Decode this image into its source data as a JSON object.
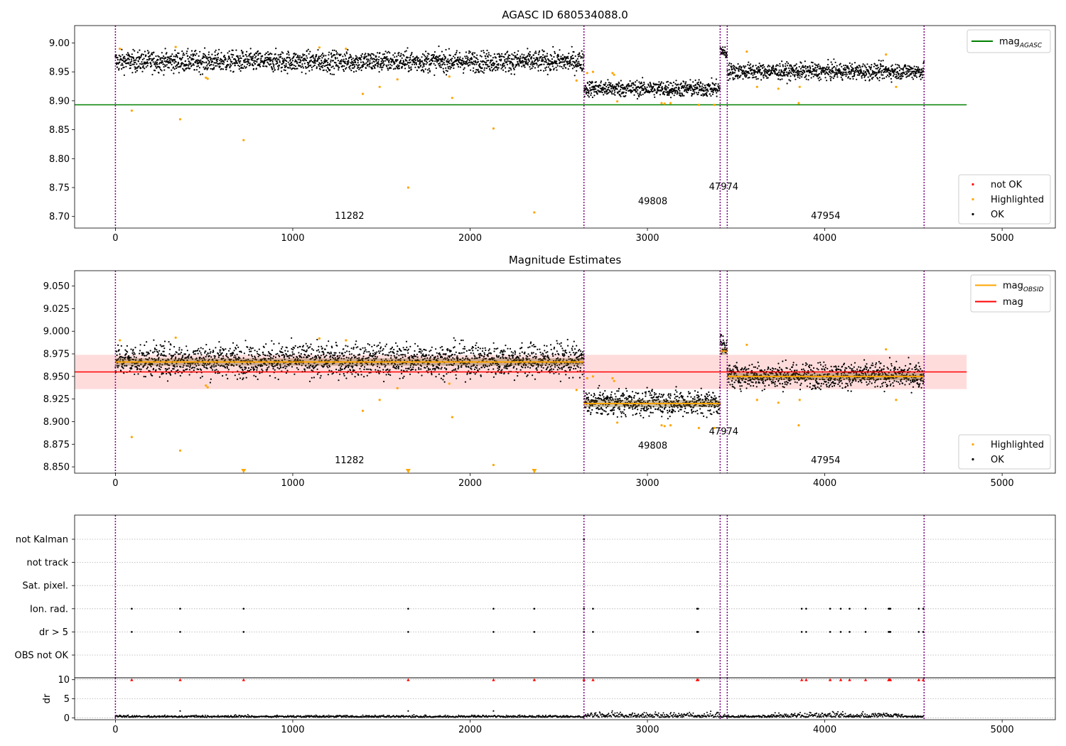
{
  "chart_data": [
    {
      "type": "scatter",
      "title": "AGASC ID 680534088.0",
      "xlim": [
        -230,
        5300
      ],
      "ylim": [
        8.68,
        9.03
      ],
      "x_ticks": [
        0,
        1000,
        2000,
        3000,
        4000,
        5000
      ],
      "y_ticks": [
        8.7,
        8.75,
        8.8,
        8.85,
        8.9,
        8.95,
        9.0
      ],
      "observation_boundaries": [
        0,
        2642,
        3410,
        3450,
        4560
      ],
      "segments": [
        {
          "x_start": 0,
          "x_end": 2642,
          "mean": 8.968,
          "noise": 0.009
        },
        {
          "x_start": 2642,
          "x_end": 3410,
          "mean": 8.921,
          "noise": 0.007
        },
        {
          "x_start": 3410,
          "x_end": 3450,
          "mean": 8.98,
          "noise": 0.008
        },
        {
          "x_start": 3450,
          "x_end": 4560,
          "mean": 8.951,
          "noise": 0.007
        }
      ],
      "obsid_labels": [
        {
          "text": "11282",
          "x": 1320,
          "y": 8.69
        },
        {
          "text": "49808",
          "x": 3030,
          "y": 8.715
        },
        {
          "text": "47974",
          "x": 3430,
          "y": 8.74
        },
        {
          "text": "47954",
          "x": 4005,
          "y": 8.69
        }
      ],
      "series": [
        {
          "name": "mag_AGASC",
          "type": "hline",
          "y": 8.893,
          "x_start": -230,
          "x_end": 4800,
          "color": "#008000"
        },
        {
          "name": "Highlighted",
          "color": "#ffa500",
          "points": [
            [
              25,
              8.99
            ],
            [
              92,
              8.883
            ],
            [
              340,
              8.993
            ],
            [
              365,
              8.868
            ],
            [
              510,
              8.94
            ],
            [
              520,
              8.938
            ],
            [
              723,
              8.832
            ],
            [
              1150,
              8.992
            ],
            [
              1300,
              8.99
            ],
            [
              1395,
              8.912
            ],
            [
              1490,
              8.924
            ],
            [
              1590,
              8.937
            ],
            [
              1651,
              8.75
            ],
            [
              1883,
              8.942
            ],
            [
              1899,
              8.905
            ],
            [
              2132,
              8.852
            ],
            [
              2362,
              8.707
            ],
            [
              2600,
              8.935
            ],
            [
              2660,
              8.948
            ],
            [
              2693,
              8.95
            ],
            [
              2803,
              8.948
            ],
            [
              2812,
              8.945
            ],
            [
              2830,
              8.899
            ],
            [
              3080,
              8.896
            ],
            [
              3097,
              8.895
            ],
            [
              3130,
              8.896
            ],
            [
              3290,
              8.893
            ],
            [
              3377,
              8.893
            ],
            [
              3560,
              8.985
            ],
            [
              3618,
              8.924
            ],
            [
              3738,
              8.921
            ],
            [
              3853,
              8.896
            ],
            [
              3858,
              8.924
            ],
            [
              4345,
              8.98
            ],
            [
              4402,
              8.924
            ]
          ]
        },
        {
          "name": "not OK",
          "color": "#ff0000",
          "points": []
        },
        {
          "name": "OK",
          "color": "#000000",
          "description": "dense per-frame magnitudes around the segment means"
        }
      ],
      "legends": [
        {
          "position": "top-right",
          "items": [
            {
              "label": "mag",
              "sub": "AGASC",
              "kind": "line",
              "color": "#008000"
            }
          ]
        },
        {
          "position": "bottom-right",
          "items": [
            {
              "label": "not OK",
              "kind": "dot",
              "color": "#ff0000"
            },
            {
              "label": "Highlighted",
              "kind": "dot",
              "color": "#ffa500"
            },
            {
              "label": "OK",
              "kind": "dot",
              "color": "#000000"
            }
          ]
        }
      ]
    },
    {
      "type": "scatter",
      "title": "Magnitude Estimates",
      "xlim": [
        -230,
        5300
      ],
      "ylim": [
        8.843,
        9.067
      ],
      "x_ticks": [
        0,
        1000,
        2000,
        3000,
        4000,
        5000
      ],
      "y_ticks": [
        8.85,
        8.875,
        8.9,
        8.925,
        8.95,
        8.975,
        9.0,
        9.025,
        9.05
      ],
      "observation_boundaries": [
        0,
        2642,
        3410,
        3450,
        4560
      ],
      "mag": {
        "y": 8.955,
        "band": [
          8.936,
          8.974
        ],
        "x_start": -230,
        "x_end": 4800,
        "color": "#ff0000",
        "band_color": "#ffdcdc"
      },
      "mag_obsid": [
        {
          "x_start": 0,
          "x_end": 2642,
          "y": 8.966
        },
        {
          "x_start": 2642,
          "x_end": 3410,
          "y": 8.92
        },
        {
          "x_start": 3410,
          "x_end": 3450,
          "y": 8.978
        },
        {
          "x_start": 3450,
          "x_end": 4560,
          "y": 8.95
        }
      ],
      "obsid_labels": [
        {
          "text": "11282",
          "x": 1320,
          "y": 8.85
        },
        {
          "text": "49808",
          "x": 3030,
          "y": 8.866
        },
        {
          "text": "47974",
          "x": 3430,
          "y": 8.882
        },
        {
          "text": "47954",
          "x": 4005,
          "y": 8.85
        }
      ],
      "off_scale_markers": [
        723,
        1651,
        2362
      ],
      "series": [
        {
          "name": "mag_OBSID",
          "color": "#ffa500"
        },
        {
          "name": "mag",
          "color": "#ff0000"
        },
        {
          "name": "Highlighted",
          "color": "#ffa500"
        },
        {
          "name": "OK",
          "color": "#000000"
        }
      ],
      "legends": [
        {
          "position": "top-right",
          "items": [
            {
              "label": "mag",
              "sub": "OBSID",
              "kind": "line",
              "color": "#ffa500"
            },
            {
              "label": "mag",
              "sub": "",
              "kind": "line",
              "color": "#ff0000"
            }
          ]
        },
        {
          "position": "bottom-right",
          "items": [
            {
              "label": "Highlighted",
              "kind": "dot",
              "color": "#ffa500"
            },
            {
              "label": "OK",
              "kind": "dot",
              "color": "#000000"
            }
          ]
        }
      ]
    },
    {
      "type": "scatter",
      "title": "",
      "xlim": [
        -230,
        5300
      ],
      "flag_categories": [
        "not Kalman",
        "not track",
        "Sat. pixel.",
        "Ion. rad.",
        "dr > 5",
        "OBS not OK"
      ],
      "flag_points": {
        "not Kalman": [
          2642
        ],
        "not track": [],
        "Sat. pixel.": [],
        "Ion. rad.": [
          92,
          365,
          723,
          1651,
          2132,
          2362,
          2642,
          2693,
          3280,
          3285,
          3870,
          3895,
          4030,
          4090,
          4140,
          4230,
          4360,
          4365,
          4370,
          4530,
          4555
        ],
        "dr > 5": [
          92,
          365,
          723,
          1651,
          2132,
          2362,
          2642,
          2693,
          3280,
          3285,
          3870,
          3895,
          4030,
          4090,
          4140,
          4230,
          4360,
          4365,
          4370,
          4530,
          4555
        ],
        "OBS not OK": []
      },
      "observation_boundaries": [
        0,
        2642,
        3410,
        3450,
        4560
      ]
    },
    {
      "type": "scatter",
      "title": "",
      "ylabel": "dr",
      "xlim": [
        -230,
        5300
      ],
      "ylim": [
        -0.5,
        10.5
      ],
      "x_ticks": [
        0,
        1000,
        2000,
        3000,
        4000,
        5000
      ],
      "y_ticks": [
        0,
        5,
        10
      ],
      "dr_clipped_at_10": [
        92,
        365,
        723,
        1651,
        2132,
        2362,
        2642,
        2693,
        3280,
        3285,
        3870,
        3895,
        4030,
        4090,
        4140,
        4230,
        4360,
        4365,
        4370,
        4530,
        4555
      ],
      "observation_boundaries": [
        0,
        2642,
        3410,
        3450,
        4560
      ]
    }
  ]
}
